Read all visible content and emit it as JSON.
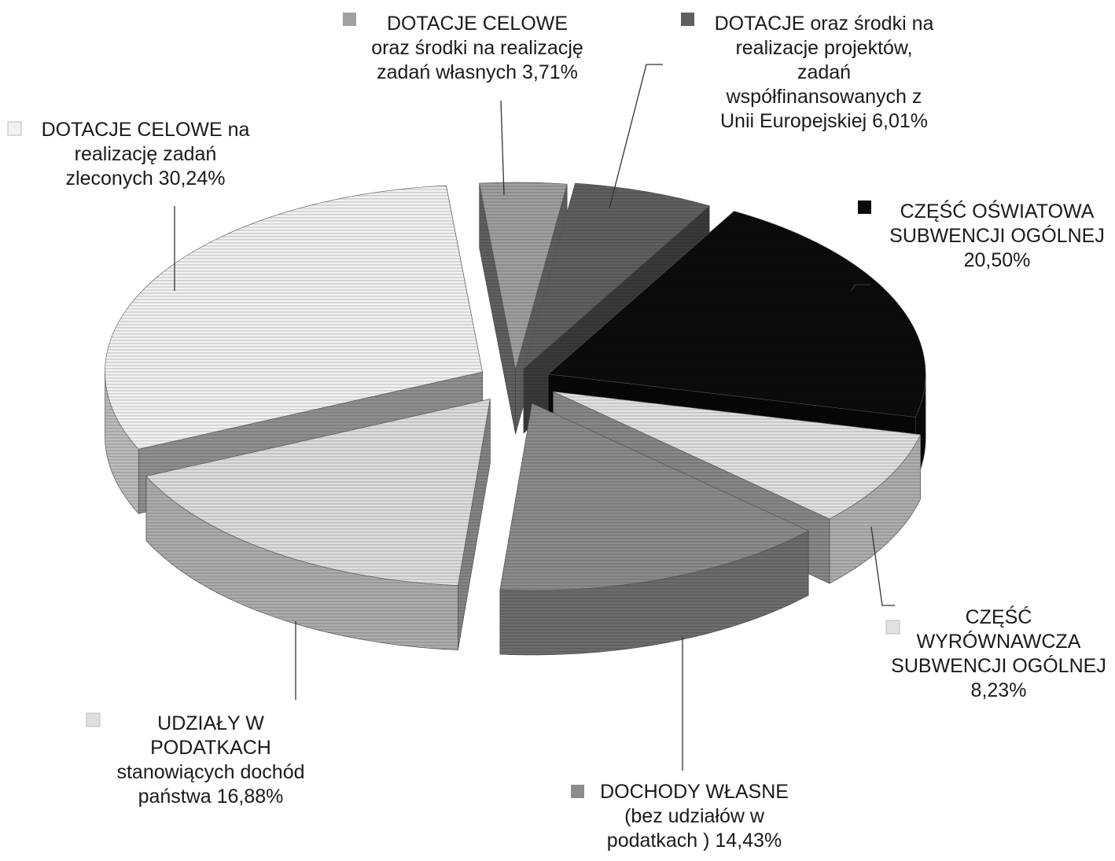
{
  "chart_data": {
    "type": "pie",
    "variant": "3d-exploded",
    "legend_placement": "labels-around-slices",
    "slices": [
      {
        "name": "DOTACJE CELOWE oraz środki na realizację zadań własnych",
        "value": 3.71,
        "color": "#a0a0a0",
        "label_lines": [
          "DOTACJE CELOWE",
          "oraz środki na realizację",
          "zadań własnych 3,71%"
        ]
      },
      {
        "name": "DOTACJE oraz środki na realizacje projektów, zadań współfinansowanych z Unii Europejskiej",
        "value": 6.01,
        "color": "#606060",
        "label_lines": [
          "DOTACJE oraz środki na",
          "realizacje projektów,",
          "zadań",
          "współfinansowanych z",
          "Unii Europejskiej 6,01%"
        ]
      },
      {
        "name": "CZĘŚĆ OŚWIATOWA SUBWENCJI OGÓLNEJ",
        "value": 20.5,
        "color": "#0c0c0c",
        "label_lines": [
          "CZĘŚĆ OŚWIATOWA",
          "SUBWENCJI OGÓLNEJ",
          "20,50%"
        ]
      },
      {
        "name": "CZĘŚĆ WYRÓWNAWCZA SUBWENCJI OGÓLNEJ",
        "value": 8.23,
        "color": "#e2e2e2",
        "label_lines": [
          "CZĘŚĆ",
          "WYRÓWNAWCZA",
          "SUBWENCJI OGÓLNEJ",
          "8,23%"
        ]
      },
      {
        "name": "DOCHODY WŁASNE (bez udziałów w podatkach )",
        "value": 14.43,
        "color": "#8c8c8c",
        "label_lines": [
          "DOCHODY WŁASNE",
          "(bez udziałów w",
          "podatkach ) 14,43%"
        ]
      },
      {
        "name": "UDZIAŁY W PODATKACH stanowiących dochód państwa",
        "value": 16.88,
        "color": "#dedede",
        "label_lines": [
          "UDZIAŁY W",
          "PODATKACH",
          "stanowiących dochód",
          "państwa 16,88%"
        ]
      },
      {
        "name": "DOTACJE CELOWE na realizację zadań zleconych",
        "value": 30.24,
        "color": "#f2f2f2",
        "label_lines": [
          "DOTACJE CELOWE na",
          "realizację zadań",
          "zleconych  30,24%"
        ]
      }
    ]
  }
}
